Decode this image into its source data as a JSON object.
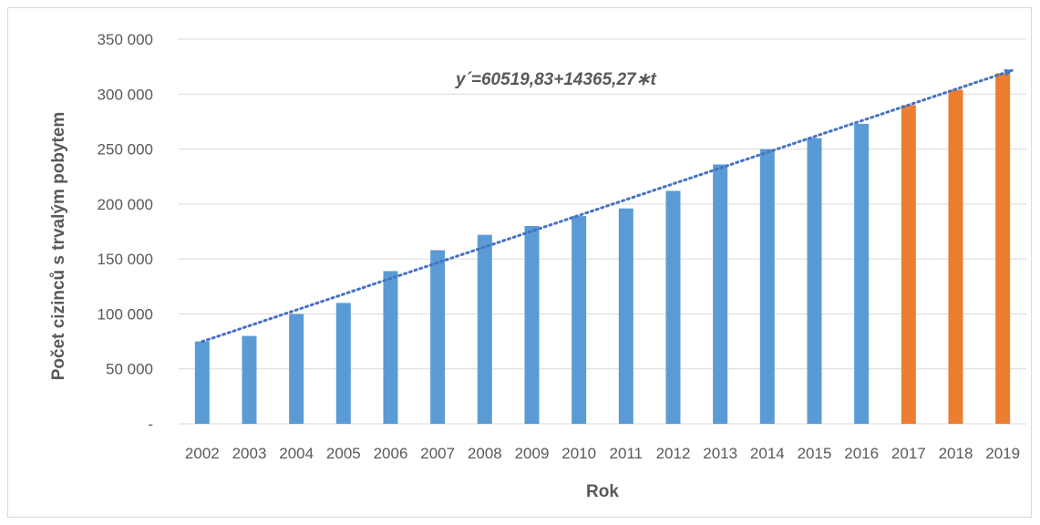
{
  "chart_data": {
    "type": "bar",
    "xlabel": "Rok",
    "ylabel": "Počet cizinců s trvalým pobytem",
    "ylim": [
      0,
      350000
    ],
    "yticks": [
      0,
      50000,
      100000,
      150000,
      200000,
      250000,
      300000,
      350000
    ],
    "ytick_labels": [
      "-",
      "50 000",
      "100 000",
      "150 000",
      "200 000",
      "250 000",
      "300 000",
      "350 000"
    ],
    "grid": true,
    "categories": [
      "2002",
      "2003",
      "2004",
      "2005",
      "2006",
      "2007",
      "2008",
      "2009",
      "2010",
      "2011",
      "2012",
      "2013",
      "2014",
      "2015",
      "2016",
      "2017",
      "2018",
      "2019"
    ],
    "values": [
      75000,
      80000,
      100000,
      110000,
      139000,
      158000,
      172000,
      180000,
      189000,
      196000,
      212000,
      236000,
      250000,
      260000,
      273000,
      290000,
      304000,
      319000
    ],
    "colors": [
      "#5b9bd5",
      "#5b9bd5",
      "#5b9bd5",
      "#5b9bd5",
      "#5b9bd5",
      "#5b9bd5",
      "#5b9bd5",
      "#5b9bd5",
      "#5b9bd5",
      "#5b9bd5",
      "#5b9bd5",
      "#5b9bd5",
      "#5b9bd5",
      "#5b9bd5",
      "#5b9bd5",
      "#ed7d31",
      "#ed7d31",
      "#ed7d31"
    ],
    "trendline": {
      "style": "dotted-arrow",
      "color": "#4472c4",
      "intercept": 60519.83,
      "slope": 14365.27,
      "equation_label": "y´=60519,83+14365,27∗t"
    }
  }
}
